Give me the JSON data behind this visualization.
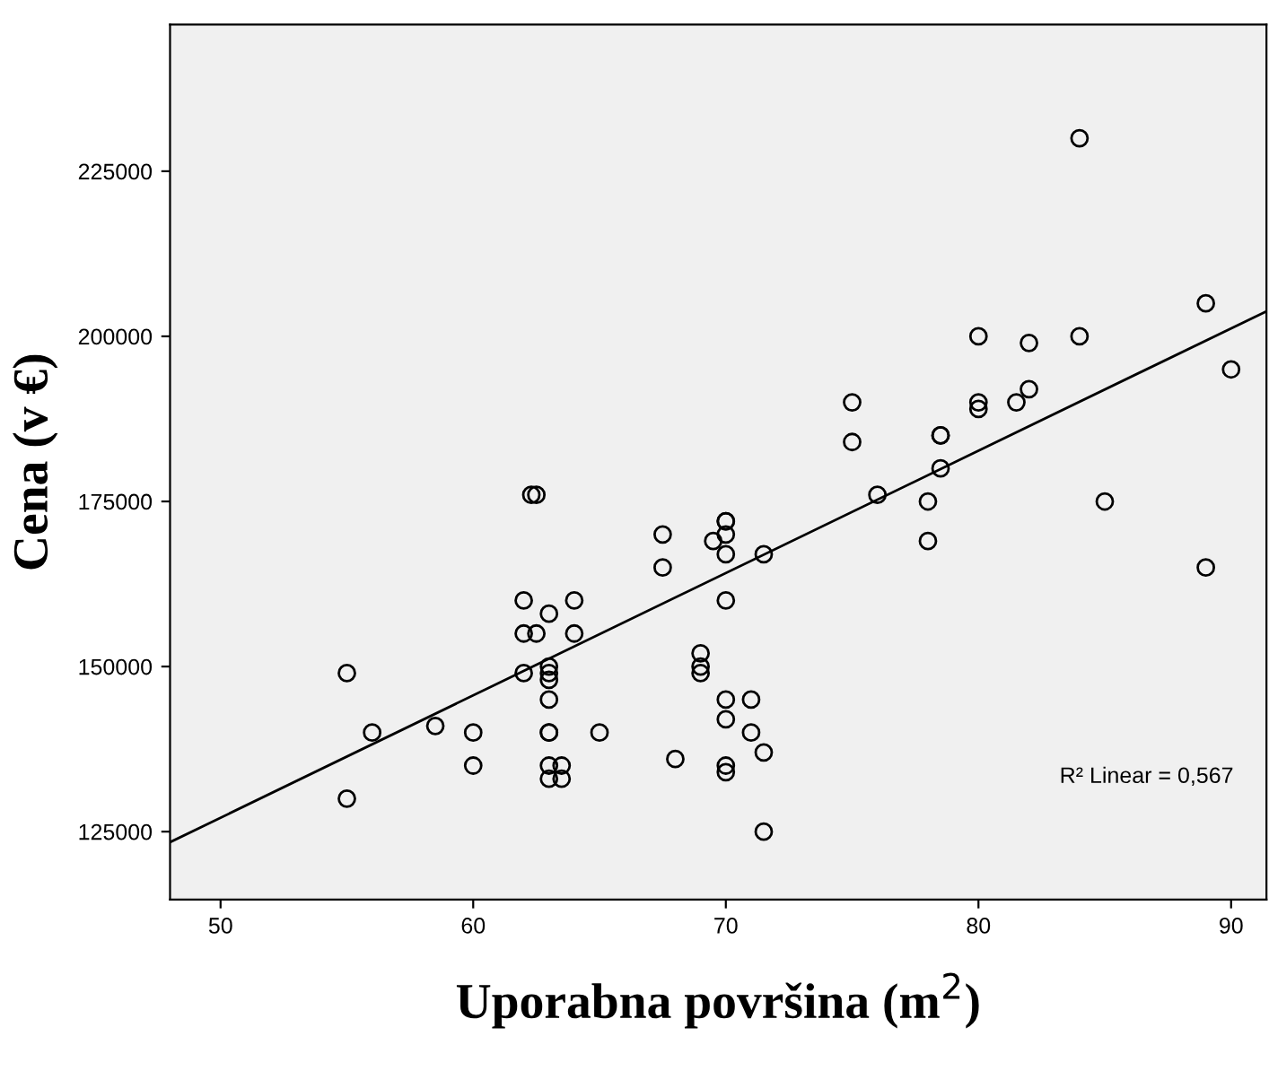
{
  "chart_data": {
    "type": "scatter",
    "xlabel": "Uporabna površina (m$^{2}$)",
    "ylabel": "Cena (v €)",
    "xlim": [
      48,
      91.4
    ],
    "ylim": [
      114700,
      247200
    ],
    "xticks": [
      50,
      60,
      70,
      80,
      90
    ],
    "yticks": [
      125000,
      150000,
      175000,
      200000,
      225000
    ],
    "grid": false,
    "legend": false,
    "marker": "circle",
    "annotations": [
      "R² Linear = 0,567"
    ],
    "series": [
      {
        "color": "#000000",
        "x": [
          55,
          55,
          56,
          58.5,
          60,
          60,
          62,
          62,
          62,
          62.3,
          62.5,
          62.5,
          63,
          63,
          63,
          63,
          63,
          63,
          63,
          63,
          63.5,
          63,
          63.5,
          64,
          64,
          65,
          67.5,
          67.5,
          68,
          69.5,
          69,
          69,
          69,
          70,
          70,
          70,
          70,
          70,
          70,
          70,
          70,
          70,
          71,
          71,
          71.5,
          71.5,
          71.5,
          75,
          75,
          76,
          78,
          78,
          78.5,
          78.5,
          78.5,
          80,
          80,
          80,
          82,
          82,
          81.5,
          84,
          84,
          85,
          89,
          89,
          90
        ],
        "values": [
          149000,
          130000,
          140000,
          141000,
          140000,
          135000,
          160000,
          155000,
          149000,
          176000,
          176000,
          155000,
          158000,
          150000,
          149000,
          148000,
          145000,
          140000,
          140000,
          135000,
          135000,
          133000,
          133000,
          160000,
          155000,
          140000,
          170000,
          165000,
          136000,
          169000,
          152000,
          150000,
          149000,
          172000,
          172000,
          170000,
          167000,
          160000,
          145000,
          142000,
          135000,
          134000,
          145000,
          140000,
          167000,
          137000,
          125000,
          190000,
          184000,
          176000,
          175000,
          169000,
          185000,
          185000,
          180000,
          200000,
          190000,
          189000,
          199000,
          192000,
          190000,
          230000,
          200000,
          175000,
          205000,
          165000,
          195000
        ]
      },
      {
        "type": "line",
        "color": "#000000",
        "marker": "none",
        "x": [
          48,
          91.4
        ],
        "values": [
          123400,
          203800
        ]
      }
    ]
  }
}
